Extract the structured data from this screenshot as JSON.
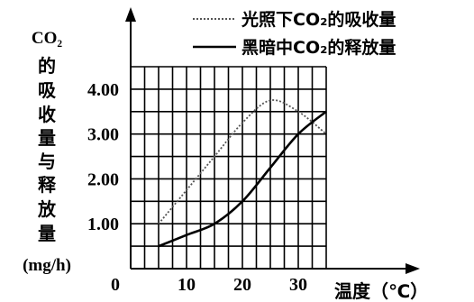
{
  "chart_data": {
    "type": "line",
    "ylabel_lines": [
      "CO₂",
      "的",
      "吸",
      "收",
      "量",
      "与",
      "释",
      "放",
      "量",
      "(mg/h)"
    ],
    "xlabel": "温度（℃）",
    "origin_label": "0",
    "x_ticks": [
      10,
      20,
      30
    ],
    "y_ticks": [
      "1.00",
      "2.00",
      "3.00",
      "4.00"
    ],
    "xlim": [
      0,
      35
    ],
    "ylim": [
      0,
      4.5
    ],
    "grid": true,
    "legend_position": "top-right",
    "series": [
      {
        "name": "光照下CO₂的吸收量",
        "style": "dotted",
        "x": [
          5,
          10,
          15,
          20,
          25,
          30,
          35
        ],
        "y": [
          1.0,
          1.75,
          2.5,
          3.25,
          3.75,
          3.5,
          3.0
        ]
      },
      {
        "name": "黑暗中CO₂的释放量",
        "style": "solid",
        "x": [
          5,
          10,
          15,
          20,
          25,
          30,
          35
        ],
        "y": [
          0.5,
          0.75,
          1.0,
          1.5,
          2.25,
          3.0,
          3.5
        ]
      }
    ]
  }
}
